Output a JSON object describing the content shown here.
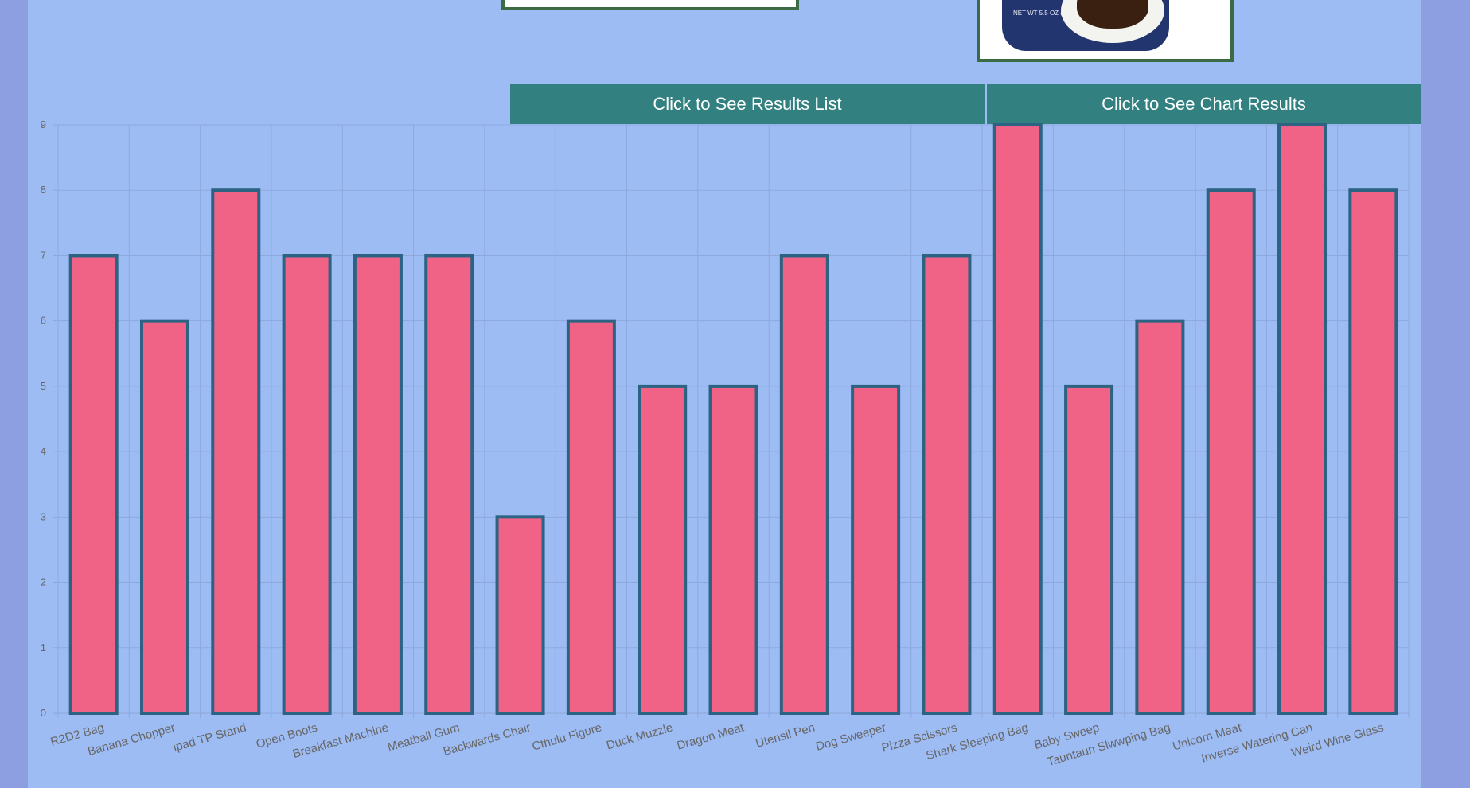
{
  "buttons": {
    "results_list": "Click to See Results List",
    "chart_results": "Click to See Chart Results"
  },
  "product_images": {
    "right_can_label": "NET WT 5.5 OZ (156g)"
  },
  "colors": {
    "page_background": "#9dbcf4",
    "side_background": "#8d9fe0",
    "button": "#328080",
    "bar_fill": "#f06387",
    "bar_border": "#2c6383",
    "image_border": "#3a6b45"
  },
  "chart_data": {
    "type": "bar",
    "categories": [
      "R2D2 Bag",
      "Banana Chopper",
      "ipad TP Stand",
      "Open Boots",
      "Breakfast Machine",
      "Meatball Gum",
      "Backwards Chair",
      "Cthulu Figure",
      "Duck Muzzle",
      "Dragon Meat",
      "Utensil Pen",
      "Dog Sweeper",
      "Pizza Scissors",
      "Shark Sleeping Bag",
      "Baby Sweep",
      "Tauntaun Slwwping Bag",
      "Unicorn Meat",
      "Inverse Watering Can",
      "Weird Wine Glass"
    ],
    "series": [
      {
        "values": [
          7,
          6,
          8,
          7,
          7,
          7,
          3,
          6,
          5,
          5,
          7,
          5,
          7,
          9,
          5,
          6,
          8,
          9,
          8
        ]
      }
    ],
    "yticks": [
      "0",
      "1",
      "2",
      "3",
      "4",
      "5",
      "6",
      "7",
      "8",
      "9"
    ],
    "ylim": [
      0,
      9
    ],
    "grid": true,
    "legend": "none"
  }
}
